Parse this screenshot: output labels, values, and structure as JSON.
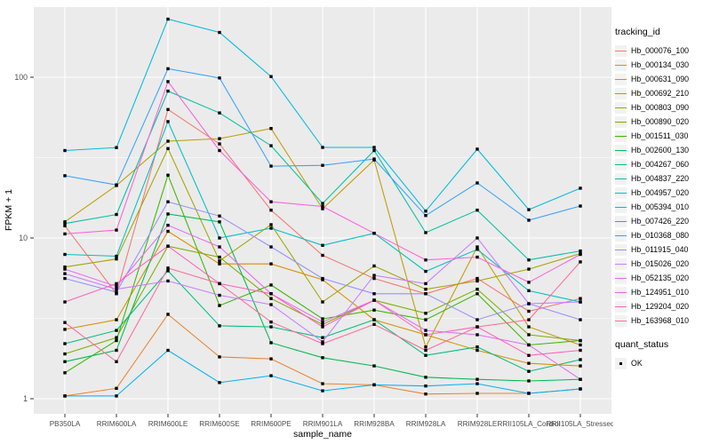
{
  "figure": {
    "y_axis_title": "FPKM + 1",
    "x_axis_title": "sample_name"
  },
  "legend": {
    "tracking_title": "tracking_id",
    "quant_title": "quant_status",
    "quant_ok_label": "OK"
  },
  "style": {
    "panel_bg": "#EBEBEB",
    "grid_color": "#FFFFFF",
    "tick_label_color": "#4D4D4D",
    "axis_title_color": "#000000",
    "marker_color": "#000000",
    "legend_key_bg": "#F2F2F2"
  },
  "chart_data": {
    "type": "line",
    "title": "",
    "xlabel": "sample_name",
    "ylabel": "FPKM + 1",
    "y_scale": "log10",
    "ylim": [
      1,
      250
    ],
    "y_ticks": [
      1,
      10,
      100
    ],
    "y_minor_ticks": [
      3.1623,
      31.623
    ],
    "grid": true,
    "legend_position": "right",
    "marker": "black-square",
    "marker_legend": {
      "title": "quant_status",
      "label": "OK"
    },
    "categories": [
      "PB350LA",
      "RRIM600LA",
      "RRIM600LE",
      "RRIM600SE",
      "RRIM600PE",
      "RRIM901LA",
      "RRIM928BA",
      "RRIM928LA",
      "RRIM928LE",
      "RRII105LA_Control",
      "RRII105LA_Stressed"
    ],
    "series": [
      {
        "name": "Hb_000076_100",
        "color": "#F8766D",
        "values": [
          11.9,
          4.5,
          63,
          38.5,
          14.9,
          7.8,
          5.6,
          4.5,
          5.6,
          3.5,
          4.2
        ]
      },
      {
        "name": "Hb_000134_030",
        "color": "#EA8331",
        "values": [
          1.04,
          1.16,
          3.35,
          1.82,
          1.77,
          1.24,
          1.22,
          1.07,
          1.08,
          1.08,
          1.15
        ]
      },
      {
        "name": "Hb_000631_090",
        "color": "#D89000",
        "values": [
          2.7,
          3.1,
          11.0,
          6.9,
          6.9,
          5.5,
          3.1,
          2.5,
          2.0,
          1.66,
          1.6
        ]
      },
      {
        "name": "Hb_000692_210",
        "color": "#C09B00",
        "values": [
          12.6,
          21.2,
          40,
          41.5,
          48,
          15.2,
          30.6,
          2.1,
          8.8,
          2.8,
          2.16
        ]
      },
      {
        "name": "Hb_000803_090",
        "color": "#A3A500",
        "values": [
          6.6,
          7.4,
          36,
          7.2,
          12.1,
          4.0,
          6.7,
          4.8,
          5.4,
          6.4,
          8.0
        ]
      },
      {
        "name": "Hb_000890_020",
        "color": "#7CAE00",
        "values": [
          1.9,
          2.4,
          8.9,
          7.6,
          4.2,
          2.9,
          4.1,
          3.4,
          4.8,
          2.5,
          2.3
        ]
      },
      {
        "name": "Hb_001511_030",
        "color": "#39B600",
        "values": [
          1.45,
          2.3,
          24.6,
          3.8,
          5.1,
          3.14,
          3.56,
          3.1,
          4.5,
          2.16,
          2.3
        ]
      },
      {
        "name": "Hb_002600_130",
        "color": "#00BB4E",
        "values": [
          1.7,
          2.0,
          14.1,
          12.6,
          2.23,
          1.8,
          1.6,
          1.36,
          1.32,
          1.29,
          1.32
        ]
      },
      {
        "name": "Hb_004267_060",
        "color": "#00BF7D",
        "values": [
          2.2,
          2.66,
          6.25,
          2.84,
          2.8,
          2.4,
          3.1,
          1.86,
          2.1,
          1.48,
          1.75
        ]
      },
      {
        "name": "Hb_004837_220",
        "color": "#00C1A3",
        "values": [
          12.3,
          14.0,
          82,
          60,
          37.5,
          16.4,
          35,
          10.8,
          14.9,
          7.3,
          8.3
        ]
      },
      {
        "name": "Hb_004957_020",
        "color": "#00BFC4",
        "values": [
          7.9,
          7.7,
          53,
          10.0,
          11.5,
          9.0,
          10.7,
          6.2,
          8.5,
          4.7,
          4.0
        ]
      },
      {
        "name": "Hb_005394_010",
        "color": "#00BAE0",
        "values": [
          35,
          36.5,
          230,
          190,
          101,
          36.6,
          36.6,
          14.7,
          35.7,
          15.0,
          20.4
        ]
      },
      {
        "name": "Hb_007426_220",
        "color": "#00B0F6",
        "values": [
          1.04,
          1.04,
          2.0,
          1.26,
          1.39,
          1.12,
          1.22,
          1.2,
          1.24,
          1.08,
          1.15
        ]
      },
      {
        "name": "Hb_010368_080",
        "color": "#35A2FF",
        "values": [
          24.4,
          21.4,
          113,
          99,
          28,
          28.3,
          31,
          13.8,
          22,
          12.9,
          15.8
        ]
      },
      {
        "name": "Hb_011915_040",
        "color": "#9590FF",
        "values": [
          5.6,
          4.6,
          16.8,
          13.7,
          8.8,
          5.6,
          4.5,
          4.5,
          3.1,
          3.9,
          3.1
        ]
      },
      {
        "name": "Hb_015026_020",
        "color": "#C77CFF",
        "values": [
          6.0,
          4.8,
          5.4,
          4.4,
          3.85,
          2.26,
          5.85,
          5.2,
          10.0,
          3.9,
          4.0
        ]
      },
      {
        "name": "Hb_052135_020",
        "color": "#E76BF3",
        "values": [
          6.4,
          5.0,
          12.0,
          8.8,
          4.5,
          3.0,
          4.1,
          2.66,
          2.5,
          2.16,
          1.32
        ]
      },
      {
        "name": "Hb_124951_010",
        "color": "#FA62DB",
        "values": [
          10.6,
          11.2,
          94,
          35,
          16.8,
          15.7,
          10.7,
          7.3,
          7.6,
          5.3,
          7.9
        ]
      },
      {
        "name": "Hb_129204_020",
        "color": "#FF62BC",
        "values": [
          4.0,
          5.2,
          8.9,
          5.2,
          4.5,
          2.8,
          4.1,
          2.5,
          2.8,
          1.86,
          2.0
        ]
      },
      {
        "name": "Hb_163968_010",
        "color": "#FF6A98",
        "values": [
          2.98,
          1.7,
          6.5,
          5.2,
          3.0,
          2.2,
          2.9,
          2.0,
          2.8,
          3.1,
          7.1
        ]
      }
    ]
  }
}
